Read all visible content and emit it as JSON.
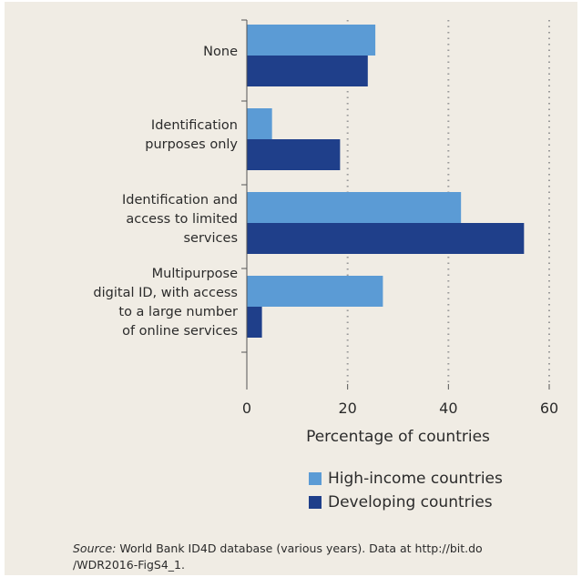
{
  "chart_data": {
    "type": "bar",
    "orientation": "horizontal",
    "categories": [
      [
        "None"
      ],
      [
        "Identification",
        "purposes only"
      ],
      [
        "Identification and",
        "access to limited",
        "services"
      ],
      [
        "Multipurpose",
        "digital ID, with access",
        "to a large number",
        "of online services"
      ]
    ],
    "series": [
      {
        "name": "High-income countries",
        "color": "#5b9bd5",
        "values": [
          25.5,
          5,
          42.5,
          27
        ]
      },
      {
        "name": "Developing countries",
        "color": "#1f3f8a",
        "values": [
          24,
          18.5,
          55,
          3
        ]
      }
    ],
    "xlabel": "Percentage of countries",
    "xlim": [
      0,
      60
    ],
    "xticks": [
      0,
      20,
      40,
      60
    ],
    "grid": "vertical dotted",
    "legend": "bottom"
  },
  "source": {
    "label": "Source:",
    "text": " World Bank ID4D database (various years). Data at http://bit.do /WDR2016-FigS4_1."
  }
}
